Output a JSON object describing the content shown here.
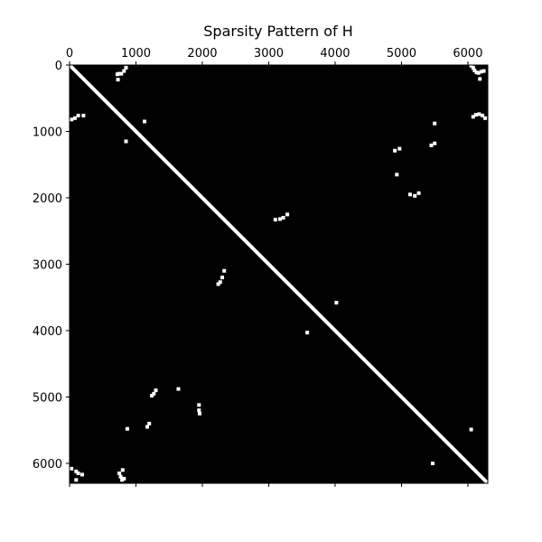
{
  "chart_data": {
    "type": "scatter",
    "title": "Sparsity Pattern of H",
    "xlabel": "",
    "ylabel": "",
    "xlim": [
      0,
      6300
    ],
    "ylim": [
      6300,
      0
    ],
    "x_ticks": [
      0,
      1000,
      2000,
      3000,
      4000,
      5000,
      6000
    ],
    "y_ticks": [
      0,
      1000,
      2000,
      3000,
      4000,
      5000,
      6000
    ],
    "x_tick_labels": [
      "0",
      "1000",
      "2000",
      "3000",
      "4000",
      "5000",
      "6000"
    ],
    "y_tick_labels": [
      "0",
      "1000",
      "2000",
      "3000",
      "4000",
      "5000",
      "6000"
    ],
    "x_axis_position": "top",
    "grid": false,
    "background_color": "#000000",
    "marker_color": "#ffffff",
    "diagonal": [
      [
        0,
        0
      ],
      [
        6300,
        6300
      ]
    ],
    "points": [
      [
        850,
        40
      ],
      [
        820,
        90
      ],
      [
        780,
        130
      ],
      [
        740,
        130
      ],
      [
        720,
        140
      ],
      [
        730,
        220
      ],
      [
        6050,
        10
      ],
      [
        6080,
        40
      ],
      [
        6100,
        80
      ],
      [
        6130,
        110
      ],
      [
        6160,
        120
      ],
      [
        6200,
        100
      ],
      [
        6240,
        90
      ],
      [
        6180,
        210
      ],
      [
        30,
        820
      ],
      [
        80,
        800
      ],
      [
        130,
        760
      ],
      [
        210,
        760
      ],
      [
        1130,
        850
      ],
      [
        6080,
        780
      ],
      [
        6120,
        750
      ],
      [
        6170,
        740
      ],
      [
        6220,
        760
      ],
      [
        6260,
        800
      ],
      [
        5500,
        880
      ],
      [
        850,
        1150
      ],
      [
        4900,
        1290
      ],
      [
        4970,
        1260
      ],
      [
        5450,
        1210
      ],
      [
        5500,
        1180
      ],
      [
        4930,
        1650
      ],
      [
        5130,
        1950
      ],
      [
        5200,
        1970
      ],
      [
        5260,
        1930
      ],
      [
        3100,
        2330
      ],
      [
        3170,
        2320
      ],
      [
        3220,
        2300
      ],
      [
        3280,
        2250
      ],
      [
        2330,
        3100
      ],
      [
        2300,
        3200
      ],
      [
        2270,
        3270
      ],
      [
        2240,
        3300
      ],
      [
        4020,
        3580
      ],
      [
        3580,
        4030
      ],
      [
        1300,
        4900
      ],
      [
        1270,
        4950
      ],
      [
        1240,
        4980
      ],
      [
        1640,
        4880
      ],
      [
        1950,
        5120
      ],
      [
        1950,
        5200
      ],
      [
        1960,
        5250
      ],
      [
        1200,
        5400
      ],
      [
        1170,
        5450
      ],
      [
        870,
        5480
      ],
      [
        5470,
        6000
      ],
      [
        6050,
        5490
      ],
      [
        30,
        6080
      ],
      [
        100,
        6120
      ],
      [
        130,
        6150
      ],
      [
        190,
        6170
      ],
      [
        100,
        6250
      ],
      [
        750,
        6150
      ],
      [
        800,
        6100
      ],
      [
        770,
        6200
      ],
      [
        820,
        6230
      ],
      [
        790,
        6250
      ]
    ]
  }
}
